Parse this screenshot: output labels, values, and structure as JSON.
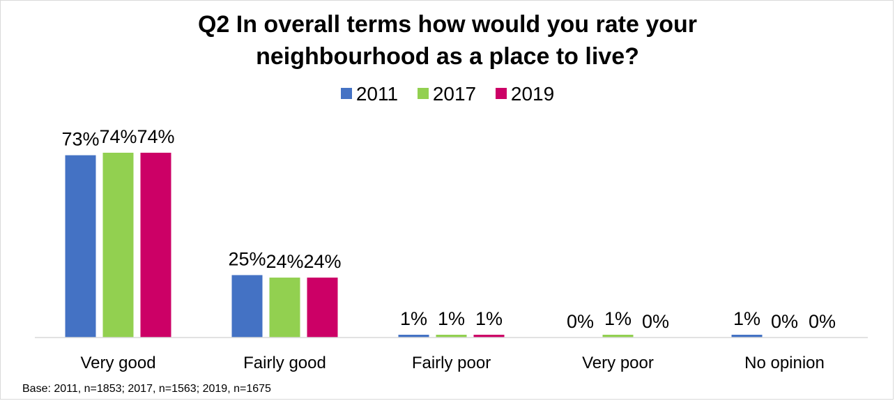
{
  "chart_data": {
    "type": "bar",
    "title_lines": [
      "Q2 In overall terms how would you rate your",
      "neighbourhood as a place to live?"
    ],
    "categories": [
      "Very good",
      "Fairly good",
      "Fairly poor",
      "Very poor",
      "No opinion"
    ],
    "series": [
      {
        "name": "2011",
        "color": "#4472C4",
        "values": [
          73,
          25,
          1,
          0,
          1
        ],
        "labels": [
          "73%",
          "25%",
          "1%",
          "0%",
          "1%"
        ]
      },
      {
        "name": "2017",
        "color": "#92D050",
        "values": [
          74,
          24,
          1,
          1,
          0
        ],
        "labels": [
          "74%",
          "24%",
          "1%",
          "1%",
          "0%"
        ]
      },
      {
        "name": "2019",
        "color": "#CC0066",
        "values": [
          74,
          24,
          1,
          0,
          0
        ],
        "labels": [
          "74%",
          "24%",
          "1%",
          "0%",
          "0%"
        ]
      }
    ],
    "xlabel": "",
    "ylabel": "",
    "ylim": [
      0,
      74
    ],
    "grid": false,
    "legend_position": "top",
    "footnote": "Base: 2011, n=1853; 2017, n=1563; 2019, n=1675"
  }
}
